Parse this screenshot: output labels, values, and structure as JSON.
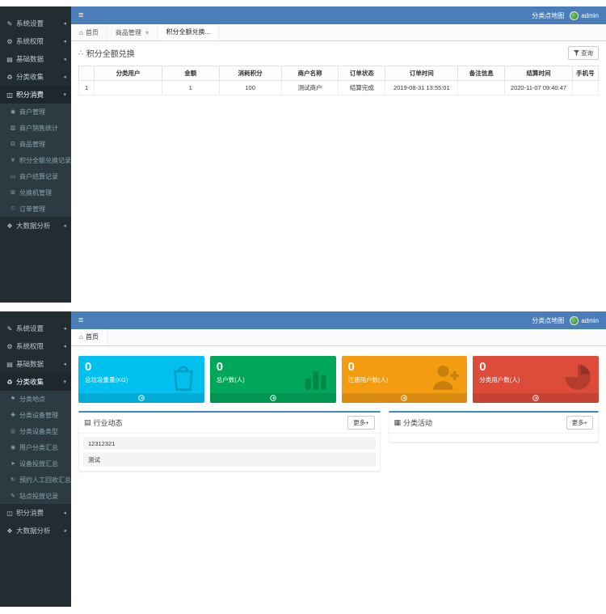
{
  "brand": {
    "map_link": "分类点地图",
    "username": "admin"
  },
  "top_shot": {
    "sidebar": [
      {
        "label": "系统设置",
        "icon": "pencil-icon",
        "state": "collapsed"
      },
      {
        "label": "系统权限",
        "icon": "gear-icon",
        "state": "collapsed"
      },
      {
        "label": "基础数据",
        "icon": "form-icon",
        "state": "collapsed"
      },
      {
        "label": "分类收集",
        "icon": "recycle-icon",
        "state": "collapsed"
      },
      {
        "label": "积分消费",
        "icon": "shop-icon",
        "state": "expanded",
        "children": [
          {
            "label": "商户管理",
            "icon": "merchant-icon"
          },
          {
            "label": "商户销售统计",
            "icon": "stats-icon"
          },
          {
            "label": "商品管理",
            "icon": "goods-icon"
          },
          {
            "label": "积分全额兑换记录",
            "icon": "exchange-record-icon"
          },
          {
            "label": "商户结算记录",
            "icon": "settlement-icon"
          },
          {
            "label": "兑换机管理",
            "icon": "machine-icon"
          },
          {
            "label": "订单管理",
            "icon": "order-icon"
          }
        ]
      },
      {
        "label": "大数据分析",
        "icon": "bigdata-icon",
        "state": "collapsed"
      }
    ],
    "tabs": [
      {
        "label": "首页",
        "icon": "home-icon"
      },
      {
        "label": "商品管理",
        "closable": true
      },
      {
        "label": "积分全额兑换...",
        "active": true
      }
    ],
    "page_title": "积分全额兑换",
    "query_button": "查询",
    "table": {
      "headers": [
        "",
        "分类用户",
        "金额",
        "消耗积分",
        "商户名称",
        "订单状态",
        "订单时间",
        "备注信息",
        "结算时间",
        "手机号"
      ],
      "col_widths": [
        "3%",
        "13%",
        "11%",
        "12%",
        "11%",
        "9%",
        "14%",
        "9%",
        "13%",
        "5%"
      ],
      "rows": [
        [
          "1",
          "",
          "1",
          "100",
          "测试商户",
          "结算完成",
          "2019-08-31 13:55:01",
          "",
          "2020-11-07 09:40:47",
          ""
        ]
      ]
    }
  },
  "bottom_shot": {
    "sidebar": [
      {
        "label": "系统设置",
        "icon": "pencil-icon",
        "state": "collapsed"
      },
      {
        "label": "系统权限",
        "icon": "gear-icon",
        "state": "collapsed"
      },
      {
        "label": "基础数据",
        "icon": "form-icon",
        "state": "collapsed"
      },
      {
        "label": "分类收集",
        "icon": "recycle-icon",
        "state": "expanded",
        "children": [
          {
            "label": "分类地点",
            "icon": "location-icon"
          },
          {
            "label": "分类设备管理",
            "icon": "device-manage-icon"
          },
          {
            "label": "分类设备类型",
            "icon": "device-type-icon"
          },
          {
            "label": "用户分类汇总",
            "icon": "user-summary-icon"
          },
          {
            "label": "设备投放汇总",
            "icon": "delivery-summary-icon"
          },
          {
            "label": "预约人工回收汇总",
            "icon": "manual-recycle-icon"
          },
          {
            "label": "站点投放记录",
            "icon": "site-record-icon"
          }
        ]
      },
      {
        "label": "积分消费",
        "icon": "shop-icon",
        "state": "collapsed"
      },
      {
        "label": "大数据分析",
        "icon": "bigdata-icon",
        "state": "collapsed"
      }
    ],
    "tabs": [
      {
        "label": "首页",
        "icon": "home-icon",
        "active": true
      }
    ],
    "cards": [
      {
        "value": "0",
        "label": "总垃圾重量(KG)",
        "color": "#00c0ef",
        "icon": "shopping-bag-icon"
      },
      {
        "value": "0",
        "label": "总户数(人)",
        "color": "#00a65a",
        "icon": "bar-chart-icon"
      },
      {
        "value": "0",
        "label": "注册用户数(人)",
        "color": "#f39c12",
        "icon": "user-plus-icon"
      },
      {
        "value": "0",
        "label": "分类用户数(人)",
        "color": "#dd4b39",
        "icon": "pie-chart-icon"
      }
    ],
    "panels": [
      {
        "title": "行业动态",
        "icon": "news-icon",
        "more_label": "更多+",
        "items": [
          "12312321",
          "测试"
        ]
      },
      {
        "title": "分类活动",
        "icon": "activity-icon",
        "more_label": "更多+",
        "items": []
      }
    ]
  }
}
